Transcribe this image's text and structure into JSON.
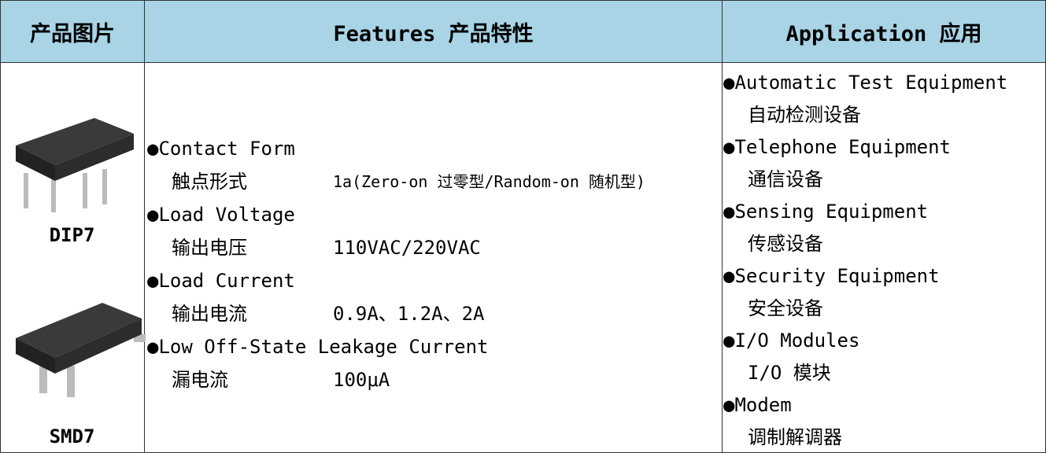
{
  "header": [
    "产品图片",
    "Features 产品特性",
    "Application 应用"
  ],
  "products": [
    "DIP7",
    "SMD7"
  ],
  "features": [
    {
      "name": "●Contact Form",
      "name_cn": "触点形式",
      "value": "1a(Zero-on 过零型/Random-on 随机型)"
    },
    {
      "name": "●Load Voltage",
      "name_cn": "输出电压",
      "value": "110VAC/220VAC"
    },
    {
      "name": "●Load Current",
      "name_cn": "输出电流",
      "value": "0.9A、1.2A、2A"
    },
    {
      "name": "●Low Off-State Leakage Current",
      "name_cn": "漏电流",
      "value": "100μA"
    }
  ],
  "applications": [
    {
      "en": "●Automatic Test Equipment",
      "cn": "自动检测设备"
    },
    {
      "en": "●Telephone Equipment",
      "cn": "通信设备"
    },
    {
      "en": "●Sensing Equipment",
      "cn": "传感设备"
    },
    {
      "en": "●Security Equipment",
      "cn": "安全设备"
    },
    {
      "en": "●I/O Modules",
      "cn": "I/O 模块"
    },
    {
      "en": "●Modem",
      "cn": "调制解调器"
    }
  ]
}
